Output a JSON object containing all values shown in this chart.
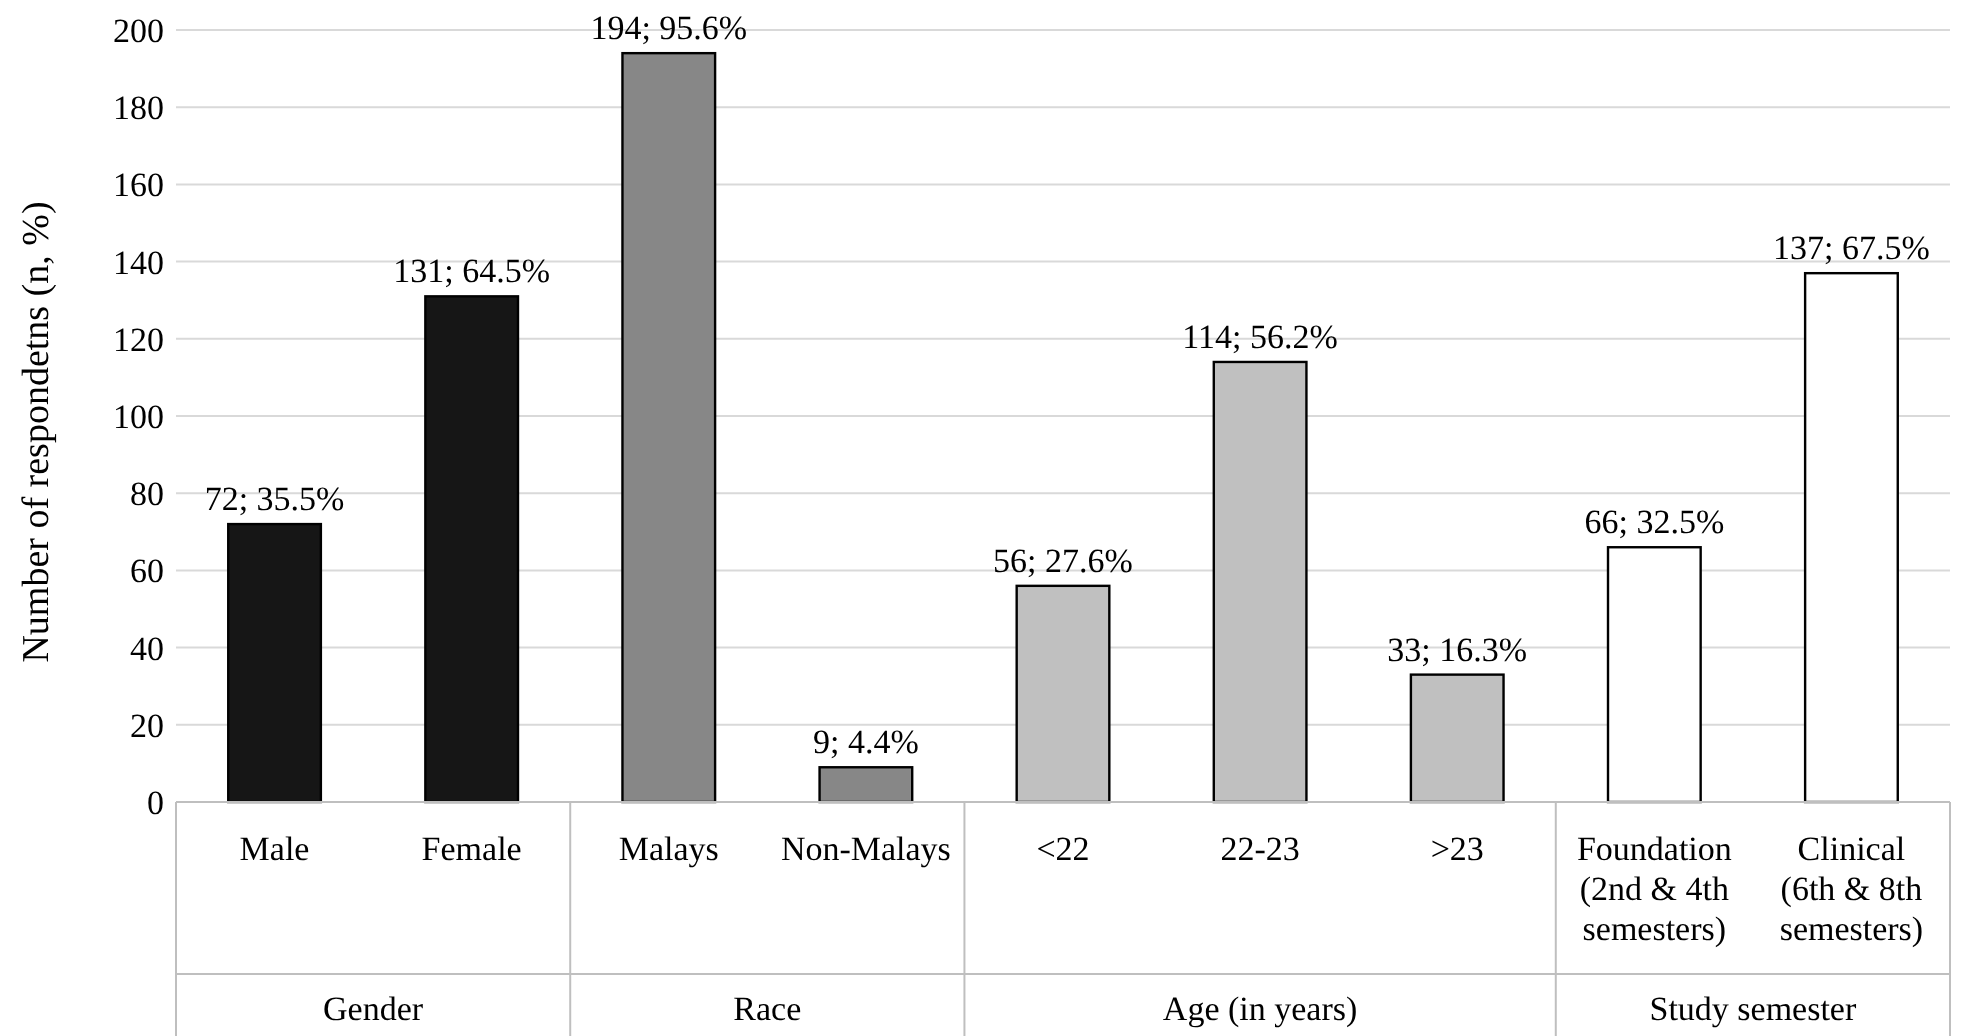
{
  "chart_data": {
    "type": "bar",
    "ylabel": "Number of respondetns (n, %)",
    "categories": [
      "Male",
      "Female",
      "Malays",
      "Non-Malays",
      "<22",
      "22-23",
      ">23",
      "Foundation\n(2nd & 4th\nsemesters)",
      "Clinical\n(6th & 8th\nsemesters)"
    ],
    "values": [
      72,
      131,
      194,
      9,
      56,
      114,
      33,
      66,
      137
    ],
    "colors": [
      "#161616",
      "#161616",
      "#878787",
      "#878787",
      "#c0c0c0",
      "#c0c0c0",
      "#c0c0c0",
      "#ffffff",
      "#ffffff"
    ],
    "value_labels": [
      "72; 35.5%",
      "131; 64.5%",
      "194; 95.6%",
      "9; 4.4%",
      "56; 27.6%",
      "114; 56.2%",
      "33; 16.3%",
      "66; 32.5%",
      "137; 67.5%"
    ],
    "ylim": [
      0,
      200
    ],
    "yticks": [
      0,
      20,
      40,
      60,
      80,
      100,
      120,
      140,
      160,
      180,
      200
    ],
    "grid": "y",
    "annotations": [
      "Gender",
      "Race",
      "Age (in years)",
      "Study semester"
    ]
  }
}
